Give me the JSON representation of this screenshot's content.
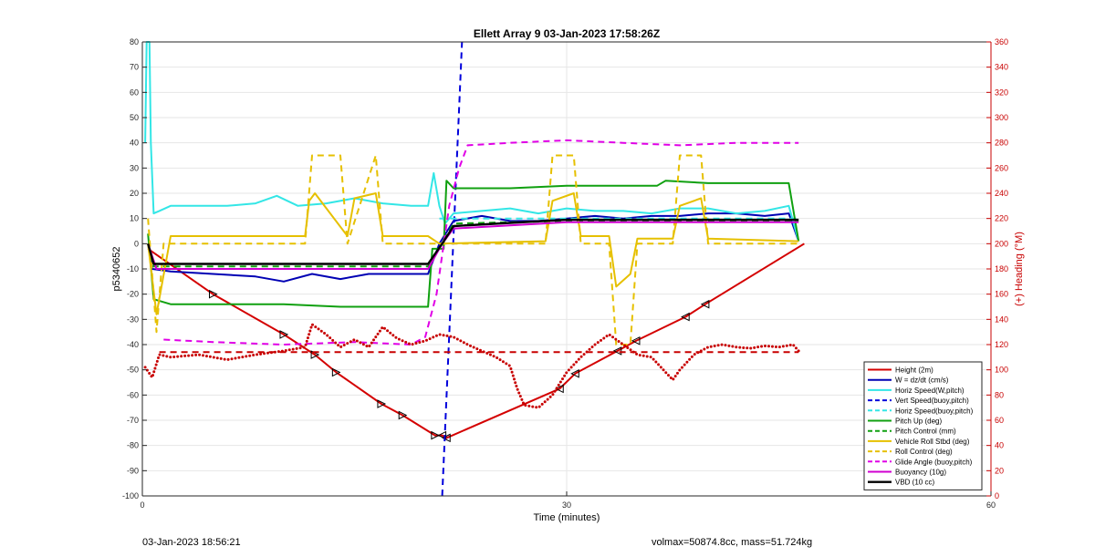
{
  "footer": {
    "timestamp": "03-Jan-2023 18:56:21",
    "info": "volmax=50874.8cc, mass=51.724kg"
  },
  "chart_data": {
    "type": "line",
    "title": "Ellett Array 9 03-Jan-2023 17:58:26Z",
    "xlabel": "Time (minutes)",
    "ylabel": "p5340652",
    "ylabel_right": "(+) Heading (°M)",
    "xlim": [
      0,
      60
    ],
    "ylim": [
      -100,
      80
    ],
    "ylim_right": [
      0,
      360
    ],
    "xticks": [
      0,
      30,
      60
    ],
    "yticks": [
      -100,
      -90,
      -80,
      -70,
      -60,
      -50,
      -40,
      -30,
      -20,
      -10,
      0,
      10,
      20,
      30,
      40,
      50,
      60,
      70,
      80
    ],
    "yticks_right": [
      0,
      20,
      40,
      60,
      80,
      100,
      120,
      140,
      160,
      180,
      200,
      220,
      240,
      260,
      280,
      300,
      320,
      340,
      360
    ],
    "grid": true,
    "legend_position": "bottom-right",
    "colors": {
      "height": "#d40000",
      "w": "#0000b4",
      "horiz": "#33e6e6",
      "vert_buoy": "#0000dc",
      "pitch": "#10a010",
      "roll": "#e6c000",
      "glide": "#e000e6",
      "buoyancy": "#d000d0",
      "vbd": "#000000",
      "heading": "#c80000"
    },
    "series": [
      {
        "name": "Height (2m)",
        "axis": "left",
        "color": "#d40000",
        "dash": "solid",
        "width": 2,
        "markers": true,
        "x": [
          0.4,
          5,
          10,
          12.2,
          13.7,
          16.9,
          18.4,
          20.7,
          21.2,
          21.5,
          29.5,
          30.6,
          33.6,
          34.9,
          38.4,
          39.8,
          46.8
        ],
        "y": [
          -2,
          -20,
          -36,
          -44,
          -51,
          -63.5,
          -68,
          -76,
          -76,
          -77,
          -57.5,
          -51.5,
          -42.5,
          -38.5,
          -29,
          -24,
          0
        ]
      },
      {
        "name": "W = dz/dt (cm/s)",
        "axis": "left",
        "color": "#0000b4",
        "dash": "solid",
        "width": 2,
        "x": [
          0.4,
          0.7,
          2,
          5,
          8,
          10,
          12,
          14,
          16,
          18,
          20.2,
          21,
          22,
          24,
          26,
          28,
          30,
          32,
          34,
          36,
          38,
          40,
          42,
          44,
          45.7,
          46.4
        ],
        "y": [
          0,
          -10,
          -11,
          -12,
          -13,
          -15,
          -12,
          -14,
          -12,
          -12,
          -12,
          0,
          9,
          11,
          9,
          9,
          10,
          11,
          10,
          11,
          11,
          12,
          12,
          11,
          12,
          1
        ]
      },
      {
        "name": "Horiz Speed(W,pitch)",
        "axis": "left",
        "color": "#33e6e6",
        "dash": "solid",
        "width": 2,
        "x": [
          0.2,
          0.3,
          0.5,
          0.6,
          0.8,
          1.2,
          2,
          4,
          6,
          8,
          9.5,
          11,
          13,
          15,
          17,
          19,
          20.2,
          20.6,
          21,
          21.4,
          22,
          24,
          26,
          28,
          30,
          32,
          34,
          36,
          38,
          40,
          42,
          44,
          45.7,
          46.4
        ],
        "y": [
          40,
          80,
          80,
          40,
          12,
          13,
          15,
          15,
          15,
          16,
          19,
          15,
          16,
          18,
          16,
          15,
          15,
          28,
          15,
          8,
          12,
          13,
          14,
          12,
          14,
          13,
          13,
          12,
          14,
          14,
          12,
          13,
          15,
          1
        ]
      },
      {
        "name": "Vert Speed(buoy,pitch)",
        "axis": "left",
        "color": "#0000dc",
        "dash": "dash",
        "width": 2,
        "x": [
          21.2,
          22.6
        ],
        "y": [
          -100,
          80
        ]
      },
      {
        "name": "Horiz Speed(buoy,pitch)",
        "axis": "left",
        "color": "#33e6e6",
        "dash": "dash",
        "width": 2,
        "x": [
          21.0,
          46.4
        ],
        "y": [
          10,
          10
        ]
      },
      {
        "name": "Pitch Up (deg)",
        "axis": "left",
        "color": "#10a010",
        "dash": "solid",
        "width": 2,
        "x": [
          0.4,
          0.8,
          2,
          6,
          10,
          14,
          18,
          20.2,
          20.5,
          21.3,
          21.5,
          22,
          26,
          30,
          34,
          36.4,
          37,
          40,
          44,
          45.7,
          46.4
        ],
        "y": [
          4,
          -22,
          -24,
          -24,
          -24,
          -25,
          -25,
          -25,
          -2,
          -2,
          25,
          22,
          22,
          23,
          23,
          23,
          25,
          24,
          24,
          24,
          1
        ]
      },
      {
        "name": "Pitch Control (mm)",
        "axis": "left",
        "color": "#10a010",
        "dash": "dash",
        "width": 2,
        "x": [
          0.4,
          0.8,
          20.2,
          21.2,
          22,
          30,
          46.4
        ],
        "y": [
          0,
          -9,
          -9,
          0,
          8,
          9,
          9
        ]
      },
      {
        "name": "Vehicle Roll Stbd (deg)",
        "axis": "left",
        "color": "#e6c000",
        "dash": "solid",
        "width": 2,
        "x": [
          0.4,
          1,
          2,
          10,
          11.5,
          11.8,
          12.2,
          14.5,
          15,
          16.5,
          17,
          20.2,
          21,
          28.5,
          29,
          30.5,
          31,
          33,
          33.5,
          34.5,
          35,
          37.5,
          38,
          39.5,
          40,
          46.4
        ],
        "y": [
          0,
          -28,
          3,
          3,
          3,
          17,
          20,
          3,
          18,
          20,
          3,
          3,
          0,
          1,
          17,
          20,
          3,
          3,
          -17,
          -12,
          2,
          2,
          15,
          18,
          2,
          1
        ]
      },
      {
        "name": "Roll Control (deg)",
        "axis": "left",
        "color": "#e6c000",
        "dash": "dash",
        "width": 2,
        "x": [
          0.4,
          1,
          1.5,
          2,
          11.5,
          12,
          14,
          14.5,
          16.5,
          17,
          20.2,
          21,
          28.5,
          29,
          30.5,
          31,
          33,
          33.5,
          34.5,
          35,
          37.5,
          38,
          39.5,
          40,
          46.4
        ],
        "y": [
          10,
          -35,
          0,
          0,
          0,
          35,
          35,
          0,
          35,
          0,
          0,
          0,
          0,
          35,
          35,
          0,
          0,
          -40,
          -40,
          0,
          0,
          35,
          35,
          0,
          0
        ]
      },
      {
        "name": "Glide Angle (buoy,pitch)",
        "axis": "left",
        "color": "#e000e6",
        "dash": "dash",
        "width": 2,
        "x": [
          1.5,
          5,
          10,
          15,
          19,
          20,
          20.8,
          21.7,
          22.4,
          23,
          26,
          30,
          34,
          38,
          42,
          46.4
        ],
        "y": [
          -38,
          -39,
          -40,
          -39,
          -40,
          -37,
          -20,
          15,
          30,
          39,
          40,
          41,
          40,
          39,
          40,
          40
        ]
      },
      {
        "name": "Buoyancy (10g)",
        "axis": "left",
        "color": "#d000d0",
        "dash": "solid",
        "width": 2,
        "x": [
          0.4,
          1,
          20.2,
          21.2,
          22,
          30,
          46.4
        ],
        "y": [
          0,
          -10,
          -10,
          0,
          6,
          8.5,
          8.5
        ]
      },
      {
        "name": "VBD (10 cc)",
        "axis": "left",
        "color": "#000000",
        "dash": "solid",
        "width": 2.4,
        "x": [
          0.4,
          0.8,
          20.2,
          21.2,
          22,
          30,
          46.4
        ],
        "y": [
          0,
          -8,
          -8,
          0,
          7,
          9.5,
          9.5
        ]
      },
      {
        "name": "Heading target",
        "axis": "right",
        "color": "#c80000",
        "dash": "dash",
        "width": 2,
        "legend": false,
        "x": [
          1.2,
          46.4
        ],
        "y": [
          114,
          114
        ]
      },
      {
        "name": "Heading",
        "axis": "right",
        "color": "#c80000",
        "dash": "dots",
        "width": 1.6,
        "legend": false,
        "x": [
          0.2,
          0.7,
          1.2,
          2,
          4,
          6,
          8,
          10,
          11.5,
          12,
          13,
          14,
          15,
          16,
          17,
          18,
          19,
          20,
          21,
          22,
          23,
          24,
          25,
          26,
          26.5,
          27,
          28,
          29,
          30,
          31,
          32,
          33,
          34,
          35,
          36,
          37,
          37.5,
          38,
          39,
          40,
          41,
          42,
          43,
          44,
          45,
          46,
          46.4
        ],
        "y": [
          102,
          94,
          112,
          110,
          112,
          108,
          112,
          115,
          118,
          136,
          128,
          118,
          124,
          118,
          134,
          125,
          120,
          123,
          128,
          126,
          120,
          115,
          110,
          103,
          85,
          72,
          70,
          80,
          98,
          110,
          120,
          128,
          120,
          112,
          110,
          98,
          92,
          100,
          112,
          118,
          120,
          118,
          117,
          119,
          118,
          120,
          115
        ]
      }
    ]
  }
}
